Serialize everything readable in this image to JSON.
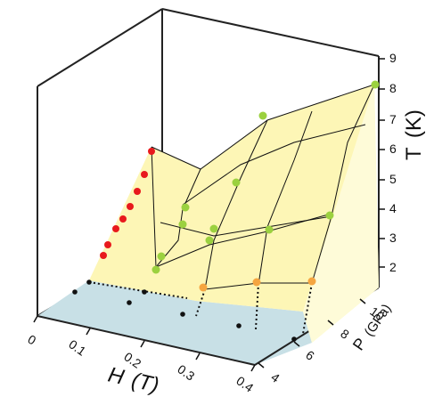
{
  "chart_data": {
    "type": "surface3d",
    "title": "",
    "axes": {
      "x": {
        "label": "H",
        "unit": "(T)",
        "ticks": [
          "0",
          "0.1",
          "0.2",
          "0.3",
          "0.4"
        ]
      },
      "y": {
        "label": "P",
        "unit": "(GPa)",
        "ticks": [
          "4",
          "6",
          "8",
          "10"
        ]
      },
      "z": {
        "label": "T",
        "unit": "(K)",
        "ticks": [
          "2",
          "3",
          "4",
          "5",
          "6",
          "7",
          "8",
          "9"
        ]
      }
    },
    "colors": {
      "surface": "#fdf6b6",
      "surface_light": "#fefbd8",
      "base_plane": "#c8e0e6",
      "red": "#e8191c",
      "green": "#9bd13f",
      "orange": "#f5a540",
      "black": "#111111"
    },
    "series": [
      {
        "color": "red",
        "points": [
          {
            "H": 0.0,
            "P": 10.0,
            "T": 2.7
          },
          {
            "H": 0.0,
            "P": 10.0,
            "T": 3.2
          },
          {
            "H": 0.0,
            "P": 10.0,
            "T": 3.7
          },
          {
            "H": 0.0,
            "P": 10.0,
            "T": 4.1
          },
          {
            "H": 0.0,
            "P": 10.0,
            "T": 4.6
          },
          {
            "H": 0.0,
            "P": 10.0,
            "T": 5.1
          },
          {
            "H": 0.0,
            "P": 10.0,
            "T": 5.5
          },
          {
            "H": 0.0,
            "P": 10.0,
            "T": 6.0
          }
        ]
      },
      {
        "color": "green",
        "points": [
          {
            "H": 0.1,
            "P": 10.0,
            "T": 2.5
          },
          {
            "H": 0.1,
            "P": 10.0,
            "T": 3.2
          },
          {
            "H": 0.1,
            "P": 10.0,
            "T": 4.2
          },
          {
            "H": 0.1,
            "P": 10.0,
            "T": 5.2
          },
          {
            "H": 0.2,
            "P": 10.0,
            "T": 3.1
          },
          {
            "H": 0.2,
            "P": 10.0,
            "T": 3.7
          },
          {
            "H": 0.2,
            "P": 10.0,
            "T": 5.2
          },
          {
            "H": 0.2,
            "P": 10.0,
            "T": 7.0
          },
          {
            "H": 0.3,
            "P": 10.0,
            "T": 3.6
          },
          {
            "H": 0.4,
            "P": 10.0,
            "T": 4.0
          },
          {
            "H": 0.4,
            "P": 10.0,
            "T": 8.0
          }
        ]
      },
      {
        "color": "orange",
        "points": [
          {
            "H": 0.2,
            "P": 8.0,
            "T": 2.0
          },
          {
            "H": 0.3,
            "P": 8.0,
            "T": 2.0
          },
          {
            "H": 0.4,
            "P": 8.0,
            "T": 2.0
          }
        ]
      },
      {
        "color": "black",
        "points": [
          {
            "H": 0.0,
            "P": 8.0,
            "T": 0.0
          },
          {
            "H": 0.05,
            "P": 7.0,
            "T": 0.0
          },
          {
            "H": 0.1,
            "P": 8.0,
            "T": 0.0
          },
          {
            "H": 0.15,
            "P": 6.5,
            "T": 0.0
          },
          {
            "H": 0.25,
            "P": 6.5,
            "T": 0.0
          },
          {
            "H": 0.35,
            "P": 6.0,
            "T": 0.0
          },
          {
            "H": 0.45,
            "P": 5.5,
            "T": 0.0
          }
        ]
      }
    ],
    "grid": true,
    "legend": "none"
  }
}
